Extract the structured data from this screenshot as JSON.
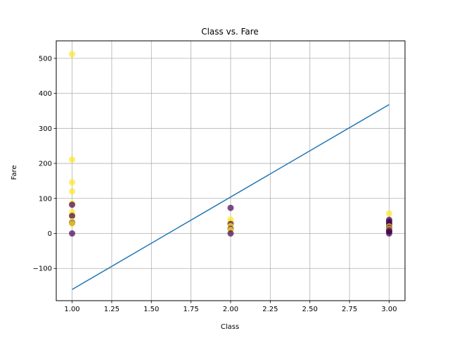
{
  "chart_data": {
    "type": "scatter",
    "title": "Class vs. Fare",
    "xlabel": "Class",
    "ylabel": "Fare",
    "xlim": [
      0.9,
      3.1
    ],
    "ylim": [
      -192,
      550
    ],
    "xticks": [
      1.0,
      1.25,
      1.5,
      1.75,
      2.0,
      2.25,
      2.5,
      2.75,
      3.0
    ],
    "xtick_labels": [
      "1.00",
      "1.25",
      "1.50",
      "1.75",
      "2.00",
      "2.25",
      "2.50",
      "2.75",
      "3.00"
    ],
    "yticks": [
      -100,
      0,
      100,
      200,
      300,
      400,
      500
    ],
    "ytick_labels": [
      "−100",
      "0",
      "100",
      "200",
      "300",
      "400",
      "500"
    ],
    "grid": true,
    "colors": {
      "survived": "#fde725",
      "not_survived": "#440154",
      "line": "#1f77b4"
    },
    "points": [
      {
        "x": 1,
        "y": 512,
        "c": 1
      },
      {
        "x": 1,
        "y": 211,
        "c": 1
      },
      {
        "x": 1,
        "y": 146,
        "c": 1
      },
      {
        "x": 1,
        "y": 120,
        "c": 1
      },
      {
        "x": 1,
        "y": 86,
        "c": 1
      },
      {
        "x": 1,
        "y": 82,
        "c": 0
      },
      {
        "x": 1,
        "y": 61,
        "c": 1
      },
      {
        "x": 1,
        "y": 52,
        "c": 1
      },
      {
        "x": 1,
        "y": 50,
        "c": 0
      },
      {
        "x": 1,
        "y": 35,
        "c": 1
      },
      {
        "x": 1,
        "y": 30,
        "c": 0
      },
      {
        "x": 1,
        "y": 28,
        "c": 1
      },
      {
        "x": 1,
        "y": 0,
        "c": 0
      },
      {
        "x": 2,
        "y": 73,
        "c": 0
      },
      {
        "x": 2,
        "y": 40,
        "c": 1
      },
      {
        "x": 2,
        "y": 33,
        "c": 1
      },
      {
        "x": 2,
        "y": 27,
        "c": 0
      },
      {
        "x": 2,
        "y": 21,
        "c": 1
      },
      {
        "x": 2,
        "y": 13,
        "c": 0
      },
      {
        "x": 2,
        "y": 10,
        "c": 1
      },
      {
        "x": 2,
        "y": 0,
        "c": 0
      },
      {
        "x": 3,
        "y": 57,
        "c": 1
      },
      {
        "x": 3,
        "y": 39,
        "c": 0
      },
      {
        "x": 3,
        "y": 34,
        "c": 0
      },
      {
        "x": 3,
        "y": 29,
        "c": 0
      },
      {
        "x": 3,
        "y": 24,
        "c": 0
      },
      {
        "x": 3,
        "y": 20,
        "c": 1
      },
      {
        "x": 3,
        "y": 16,
        "c": 0
      },
      {
        "x": 3,
        "y": 13,
        "c": 1
      },
      {
        "x": 3,
        "y": 10,
        "c": 0
      },
      {
        "x": 3,
        "y": 8,
        "c": 1
      },
      {
        "x": 3,
        "y": 7,
        "c": 0
      },
      {
        "x": 3,
        "y": 5,
        "c": 0
      },
      {
        "x": 3,
        "y": 0,
        "c": 0
      }
    ],
    "line": {
      "x": [
        1.0,
        3.0
      ],
      "y": [
        -160,
        368
      ]
    }
  }
}
